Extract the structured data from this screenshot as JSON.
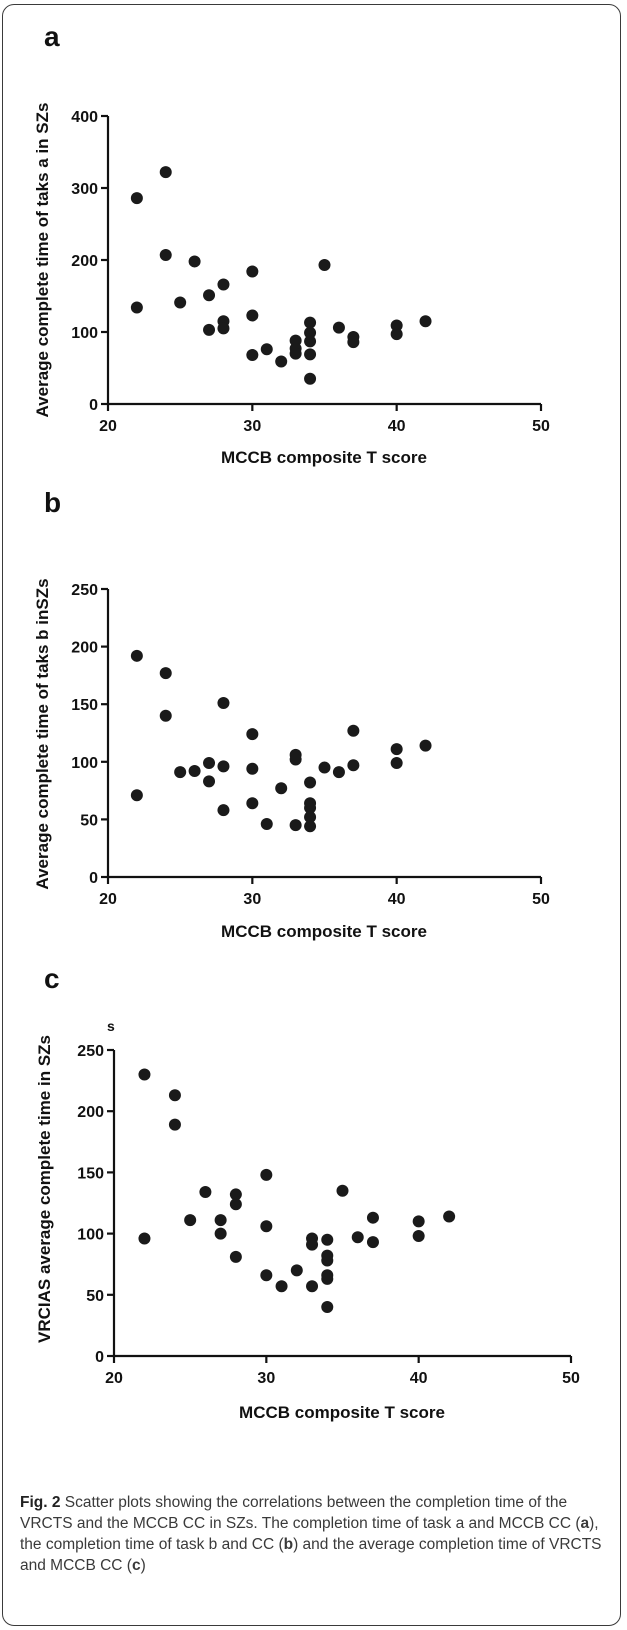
{
  "chart_data": [
    {
      "type": "scatter",
      "panel_label": "a",
      "xlabel": "MCCB composite T score",
      "ylabel": "Average complete time of taks a in SZs",
      "unit_label": "",
      "xlim": [
        20,
        50
      ],
      "ylim": [
        0,
        400
      ],
      "xticks": [
        20,
        30,
        40,
        50
      ],
      "yticks": [
        0,
        100,
        200,
        300,
        400
      ],
      "points": [
        [
          22,
          286
        ],
        [
          22,
          134
        ],
        [
          24,
          322
        ],
        [
          24,
          207
        ],
        [
          25,
          141
        ],
        [
          26,
          198
        ],
        [
          27,
          151
        ],
        [
          27,
          103
        ],
        [
          28,
          166
        ],
        [
          28,
          115
        ],
        [
          28,
          105
        ],
        [
          30,
          184
        ],
        [
          30,
          123
        ],
        [
          30,
          68
        ],
        [
          31,
          76
        ],
        [
          32,
          59
        ],
        [
          33,
          88
        ],
        [
          33,
          77
        ],
        [
          33,
          70
        ],
        [
          34,
          113
        ],
        [
          34,
          99
        ],
        [
          34,
          87
        ],
        [
          34,
          69
        ],
        [
          34,
          35
        ],
        [
          35,
          193
        ],
        [
          36,
          106
        ],
        [
          37,
          93
        ],
        [
          37,
          86
        ],
        [
          40,
          109
        ],
        [
          40,
          97
        ],
        [
          42,
          115
        ]
      ]
    },
    {
      "type": "scatter",
      "panel_label": "b",
      "xlabel": "MCCB composite T score",
      "ylabel": "Average complete time of taks b inSZs",
      "unit_label": "",
      "xlim": [
        20,
        50
      ],
      "ylim": [
        0,
        250
      ],
      "xticks": [
        20,
        30,
        40,
        50
      ],
      "yticks": [
        0,
        50,
        100,
        150,
        200,
        250
      ],
      "points": [
        [
          22,
          192
        ],
        [
          22,
          71
        ],
        [
          24,
          177
        ],
        [
          24,
          140
        ],
        [
          25,
          91
        ],
        [
          26,
          92
        ],
        [
          27,
          99
        ],
        [
          27,
          83
        ],
        [
          28,
          151
        ],
        [
          28,
          96
        ],
        [
          28,
          58
        ],
        [
          30,
          124
        ],
        [
          30,
          94
        ],
        [
          30,
          64
        ],
        [
          31,
          46
        ],
        [
          32,
          77
        ],
        [
          33,
          106
        ],
        [
          33,
          102
        ],
        [
          33,
          45
        ],
        [
          34,
          82
        ],
        [
          34,
          64
        ],
        [
          34,
          60
        ],
        [
          34,
          52
        ],
        [
          34,
          44
        ],
        [
          35,
          95
        ],
        [
          36,
          91
        ],
        [
          37,
          127
        ],
        [
          37,
          97
        ],
        [
          40,
          111
        ],
        [
          40,
          99
        ],
        [
          42,
          114
        ]
      ]
    },
    {
      "type": "scatter",
      "panel_label": "c",
      "xlabel": "MCCB composite T score",
      "ylabel": "VRCIAS average complete time in SZs",
      "unit_label": "s",
      "xlim": [
        20,
        50
      ],
      "ylim": [
        0,
        250
      ],
      "xticks": [
        20,
        30,
        40,
        50
      ],
      "yticks": [
        0,
        50,
        100,
        150,
        200,
        250
      ],
      "points": [
        [
          22,
          230
        ],
        [
          22,
          96
        ],
        [
          24,
          213
        ],
        [
          24,
          189
        ],
        [
          25,
          111
        ],
        [
          26,
          134
        ],
        [
          27,
          111
        ],
        [
          27,
          100
        ],
        [
          28,
          132
        ],
        [
          28,
          124
        ],
        [
          28,
          81
        ],
        [
          30,
          148
        ],
        [
          30,
          106
        ],
        [
          30,
          66
        ],
        [
          31,
          57
        ],
        [
          32,
          70
        ],
        [
          33,
          96
        ],
        [
          33,
          91
        ],
        [
          33,
          57
        ],
        [
          34,
          95
        ],
        [
          34,
          82
        ],
        [
          34,
          78
        ],
        [
          34,
          66
        ],
        [
          34,
          63
        ],
        [
          34,
          40
        ],
        [
          35,
          135
        ],
        [
          36,
          97
        ],
        [
          37,
          113
        ],
        [
          37,
          93
        ],
        [
          40,
          110
        ],
        [
          40,
          98
        ],
        [
          42,
          114
        ]
      ]
    }
  ],
  "caption": {
    "label": "Fig. 2",
    "text": " Scatter plots showing the correlations between the completion time of the VRCTS and the MCCB CC in SZs. The completion time of task a and MCCB CC (",
    "ref_a": "a",
    "text_2": "), the completion time of task b and CC (",
    "ref_b": "b",
    "text_3": ") and the average completion time of VRCTS and MCCB CC (",
    "ref_c": "c",
    "text_4": ")"
  }
}
